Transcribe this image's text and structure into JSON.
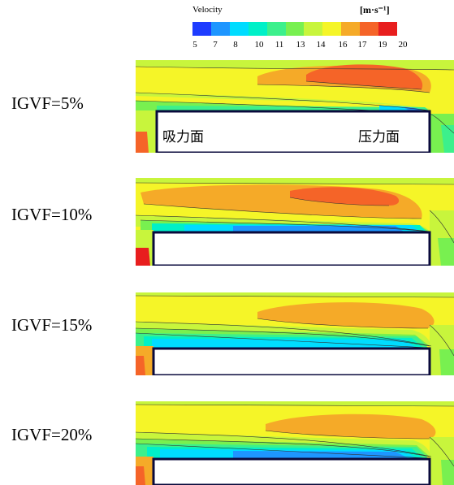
{
  "legend": {
    "title": "Velocity",
    "unit_html": "[m·s⁻¹]",
    "ticks": [
      "5",
      "7",
      "8",
      "10",
      "11",
      "13",
      "14",
      "16",
      "17",
      "19",
      "20"
    ],
    "colors": [
      "#1e3cff",
      "#1e96ff",
      "#00dcff",
      "#00f0c8",
      "#3cf08c",
      "#78f050",
      "#c8f53c",
      "#f5f528",
      "#f5aa28",
      "#f56428",
      "#e81e1e"
    ]
  },
  "cases": [
    {
      "label": "IGVF=5%",
      "suction_label": "吸力面",
      "pressure_label": "压力面"
    },
    {
      "label": "IGVF=10%"
    },
    {
      "label": "IGVF=15%"
    },
    {
      "label": "IGVF=20%"
    }
  ]
}
